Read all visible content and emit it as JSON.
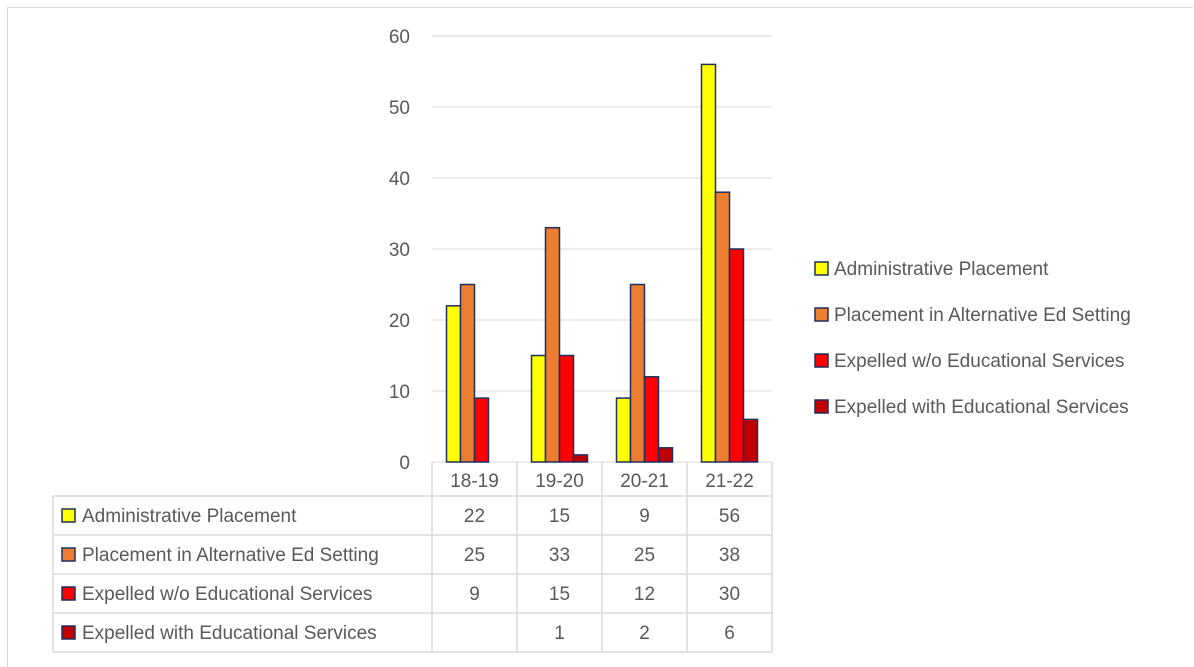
{
  "chart_data": {
    "type": "bar",
    "title": "",
    "xlabel": "",
    "ylabel": "",
    "ylim": [
      0,
      60
    ],
    "yticks": [
      0,
      10,
      20,
      30,
      40,
      50,
      60
    ],
    "grid": true,
    "legend_position": "right",
    "data_table": true,
    "categories": [
      "18-19",
      "19-20",
      "20-21",
      "21-22"
    ],
    "series": [
      {
        "name": "Administrative Placement",
        "color": "#ffff00",
        "values": [
          22,
          15,
          9,
          56
        ]
      },
      {
        "name": "Placement in Alternative Ed Setting",
        "color": "#ed7d31",
        "values": [
          25,
          33,
          25,
          38
        ]
      },
      {
        "name": "Expelled w/o Educational Services",
        "color": "#ff0000",
        "values": [
          9,
          15,
          12,
          30
        ]
      },
      {
        "name": "Expelled with Educational Services",
        "color": "#c00000",
        "values": [
          null,
          1,
          2,
          6
        ]
      }
    ],
    "bar_outline_color": "#1f2f5e"
  }
}
